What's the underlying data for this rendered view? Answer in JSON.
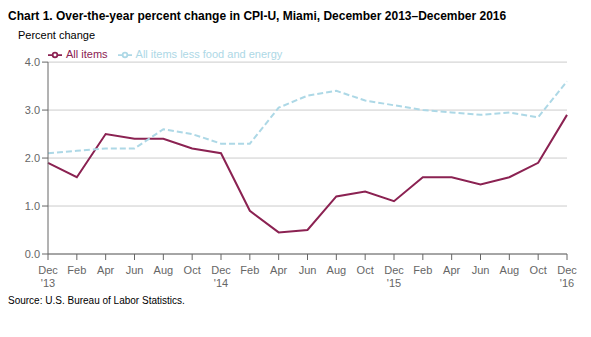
{
  "chart_data": {
    "type": "line",
    "title": "Chart 1. Over-the-year percent change in CPI-U, Miami, December 2013–December 2016",
    "ylabel": "Percent change",
    "annotations": [
      "Source: U.S. Bureau of Labor Statistics."
    ],
    "categories": [
      "Dec\n'13",
      "Feb",
      "Apr",
      "Jun",
      "Aug",
      "Oct",
      "Dec\n'14",
      "Feb",
      "Apr",
      "Jun",
      "Aug",
      "Oct",
      "Dec\n'15",
      "Feb",
      "Apr",
      "Jun",
      "Aug",
      "Oct",
      "Dec\n'16"
    ],
    "series": [
      {
        "name": "All items",
        "color": "#8B2252",
        "line_style": "solid",
        "values": [
          1.9,
          1.6,
          2.5,
          2.4,
          2.4,
          2.2,
          2.1,
          0.9,
          0.45,
          0.5,
          1.2,
          1.3,
          1.1,
          1.6,
          1.6,
          1.45,
          1.6,
          1.9,
          2.9
        ]
      },
      {
        "name": "All items less food and energy",
        "color": "#ADD8E6",
        "line_style": "dashed",
        "values": [
          2.1,
          2.15,
          2.2,
          2.2,
          2.6,
          2.5,
          2.3,
          2.3,
          3.05,
          3.3,
          3.4,
          3.2,
          3.1,
          3.0,
          2.95,
          2.9,
          2.95,
          2.85,
          3.6
        ]
      }
    ],
    "ylim": [
      0.0,
      4.0
    ],
    "yticks": [
      {
        "value": 0.0,
        "label": "0.0"
      },
      {
        "value": 1.0,
        "label": "1.0"
      },
      {
        "value": 2.0,
        "label": "2.0"
      },
      {
        "value": 3.0,
        "label": "3.0"
      },
      {
        "value": 4.0,
        "label": "4.0"
      }
    ],
    "grid": true,
    "legend": "upper left"
  }
}
